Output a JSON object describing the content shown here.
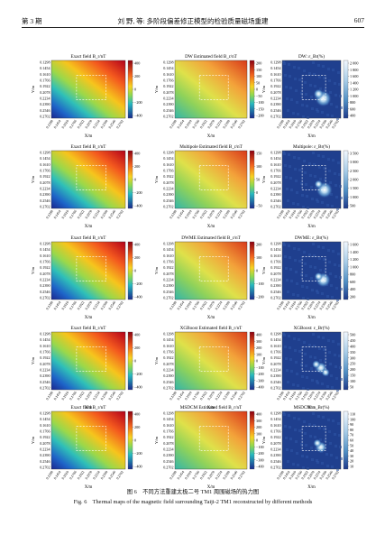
{
  "header": {
    "issue": "第 3 期",
    "title": "刘 野, 等: 多阶段偏差修正模型的检验质量磁场重建",
    "page": "607"
  },
  "rows": [
    {
      "label_a": "Exact field B_r/nT",
      "label_b": "DW Estimated field B_r/nT",
      "label_c": "DW: ε_Br(%)",
      "ticks_a": [
        "400",
        "200",
        "0",
        "−200",
        "−400"
      ],
      "ticks_b": [
        "200",
        "150",
        "100",
        "50",
        "0",
        "−50",
        "−100",
        "−150",
        "−200"
      ],
      "ticks_c": [
        "2 000",
        "1 800",
        "1 600",
        "1 400",
        "1 200",
        "1 000",
        "800",
        "600",
        "400"
      ],
      "hot": [
        [
          0.7,
          0.66,
          0.1
        ],
        [
          0.62,
          0.58,
          0.06
        ]
      ]
    },
    {
      "label_a": "Exact field B_r/nT",
      "label_b": "Multipole Estimated field B_r/nT",
      "label_c": "Multipole: ε_Br(%)",
      "ticks_a": [
        "400",
        "200",
        "0",
        "−200",
        "−400"
      ],
      "ticks_b": [
        "150",
        "100",
        "50",
        "0",
        "−50"
      ],
      "ticks_c": [
        "3 500",
        "3 000",
        "2 500",
        "2 000",
        "1 500",
        "1 000",
        "500"
      ],
      "hot": [
        [
          0.72,
          0.68,
          0.1
        ],
        [
          0.62,
          0.58,
          0.05
        ]
      ]
    },
    {
      "label_a": "Exact field B_r/nT",
      "label_b": "DWME Estimated field B_r/nT",
      "label_c": "DWME: ε_Br(%)",
      "ticks_a": [
        "400",
        "200",
        "0",
        "−200",
        "−400"
      ],
      "ticks_b": [
        "200",
        "100",
        "0",
        "−100",
        "−200"
      ],
      "ticks_c": [
        "1 600",
        "1 400",
        "1 200",
        "1 000",
        "800",
        "600",
        "400",
        "200"
      ],
      "hot": [
        [
          0.7,
          0.66,
          0.09
        ],
        [
          0.62,
          0.6,
          0.05
        ]
      ]
    },
    {
      "label_a": "Exact field B_r/nT",
      "label_b": "XGBoost Estimated field B_r/nT",
      "label_c": "XGBoost: ε_Br(%)",
      "ticks_a": [
        "400",
        "200",
        "0",
        "−200",
        "−400"
      ],
      "ticks_b": [
        "400",
        "300",
        "200",
        "100",
        "0",
        "−100",
        "−200",
        "−300",
        "−400"
      ],
      "ticks_c": [
        "500",
        "450",
        "400",
        "350",
        "300",
        "250",
        "200",
        "150",
        "100",
        "50"
      ],
      "hot": [
        [
          0.66,
          0.62,
          0.07
        ],
        [
          0.58,
          0.56,
          0.05
        ],
        [
          0.74,
          0.7,
          0.05
        ]
      ]
    },
    {
      "label_a": "Exact field B_r/nT",
      "label_b": "MSDCM Estimated field B_r/nT",
      "label_c": "MSDCM: ε_Br(%)",
      "ticks_a": [
        "400",
        "200",
        "0",
        "−200",
        "−400"
      ],
      "ticks_b": [
        "400",
        "300",
        "200",
        "100",
        "0",
        "−100",
        "−200",
        "−300",
        "−400"
      ],
      "ticks_c": [
        "110",
        "100",
        "90",
        "80",
        "70",
        "60",
        "50",
        "40",
        "30",
        "20",
        "10"
      ],
      "hot": [
        [
          0.66,
          0.62,
          0.07
        ],
        [
          0.6,
          0.55,
          0.05
        ]
      ]
    }
  ],
  "y_ticks": [
    "0.1298",
    "0.1454",
    "0.1610",
    "0.1766",
    "0.1922",
    "0.2078",
    "0.2234",
    "0.2390",
    "0.2546",
    "0.2702"
  ],
  "x_ticks": [
    "0.1298",
    "0.1454",
    "0.1610",
    "0.1766",
    "0.1922",
    "0.2078",
    "0.2234",
    "0.2390",
    "0.2546",
    "0.2702"
  ],
  "x_label": "X/m",
  "y_label": "Y/m",
  "caption_zh": "图 6　不同方法重建太极二号 TM1 周围磁场的热力图",
  "caption_en": "Fig. 6　Thermal maps of the magnetic field surrounding Taiji-2 TM1 reconstructed by different methods"
}
